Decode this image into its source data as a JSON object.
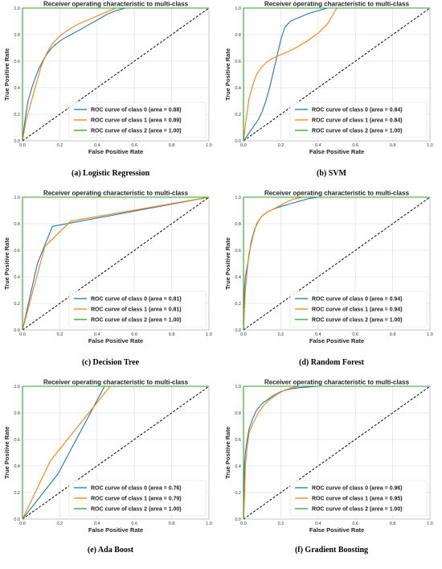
{
  "colors": {
    "class0": "#1f77b4",
    "class1": "#ff7f0e",
    "class2": "#2ca02c",
    "diagonal": "#000000",
    "grid": "#e0e0e0",
    "frame": "#bbbbbb"
  },
  "chart_data": [
    {
      "type": "line",
      "title": "Receiver operating characteristic to multi-class",
      "xlabel": "False Positive Rate",
      "ylabel": "True Positive Rate",
      "caption": "(a) Logistic Regression",
      "xlim": [
        0,
        1
      ],
      "ylim": [
        0,
        1
      ],
      "ticks": [
        "0.0",
        "0.2",
        "0.4",
        "0.6",
        "0.8",
        "1.0"
      ],
      "grid": true,
      "legend": "lower-right",
      "series": [
        {
          "name": "ROC curve of class 0 (area = 0.88)",
          "x": [
            0,
            0.01,
            0.02,
            0.03,
            0.05,
            0.07,
            0.09,
            0.12,
            0.15,
            0.18,
            0.22,
            0.26,
            0.3,
            0.35,
            0.4,
            0.45,
            0.5,
            0.55,
            1.0
          ],
          "y": [
            0,
            0.12,
            0.22,
            0.3,
            0.4,
            0.48,
            0.55,
            0.63,
            0.69,
            0.73,
            0.77,
            0.8,
            0.83,
            0.87,
            0.91,
            0.95,
            0.98,
            1.0,
            1.0
          ]
        },
        {
          "name": "ROC curve of class 1 (area = 0.89)",
          "x": [
            0,
            0.01,
            0.02,
            0.04,
            0.06,
            0.08,
            0.1,
            0.13,
            0.16,
            0.2,
            0.25,
            0.3,
            0.35,
            0.4,
            0.45,
            0.5,
            1.0
          ],
          "y": [
            0,
            0.08,
            0.16,
            0.26,
            0.36,
            0.46,
            0.56,
            0.66,
            0.73,
            0.79,
            0.84,
            0.88,
            0.91,
            0.94,
            0.97,
            1.0,
            1.0
          ]
        },
        {
          "name": "ROC curve of class 2 (area = 1.00)",
          "x": [
            0,
            0,
            1
          ],
          "y": [
            0,
            1,
            1
          ]
        }
      ]
    },
    {
      "type": "line",
      "title": "Receiver operating characteristic to multi-class",
      "xlabel": "False Positive Rate",
      "ylabel": "True Positive Rate",
      "caption": "(b) SVM",
      "xlim": [
        0,
        1
      ],
      "ylim": [
        0,
        1
      ],
      "ticks": [
        "0.0",
        "0.2",
        "0.4",
        "0.6",
        "0.8",
        "1.0"
      ],
      "grid": true,
      "legend": "lower-right",
      "series": [
        {
          "name": "ROC curve of class 0 (area = 0.84)",
          "x": [
            0,
            0.02,
            0.05,
            0.08,
            0.1,
            0.12,
            0.14,
            0.16,
            0.18,
            0.2,
            0.22,
            0.25,
            0.3,
            0.35,
            0.4,
            0.45,
            1.0
          ],
          "y": [
            0,
            0.04,
            0.1,
            0.16,
            0.22,
            0.3,
            0.4,
            0.52,
            0.64,
            0.76,
            0.85,
            0.9,
            0.93,
            0.96,
            0.98,
            1.0,
            1.0
          ]
        },
        {
          "name": "ROC curve of class 1 (area = 0.84)",
          "x": [
            0,
            0.01,
            0.02,
            0.03,
            0.05,
            0.07,
            0.1,
            0.13,
            0.17,
            0.22,
            0.28,
            0.34,
            0.4,
            0.45,
            0.5,
            1.0
          ],
          "y": [
            0,
            0.12,
            0.22,
            0.32,
            0.42,
            0.5,
            0.56,
            0.6,
            0.63,
            0.66,
            0.7,
            0.75,
            0.81,
            0.88,
            1.0,
            1.0
          ]
        },
        {
          "name": "ROC curve of class 2 (area = 1.00)",
          "x": [
            0,
            0,
            1
          ],
          "y": [
            0,
            1,
            1
          ]
        }
      ]
    },
    {
      "type": "line",
      "title": "Receiver operating characteristic to multi-class",
      "xlabel": "False Positive Rate",
      "ylabel": "True Positive Rate",
      "caption": "(c) Decision Tree",
      "xlim": [
        0,
        1
      ],
      "ylim": [
        0,
        1
      ],
      "ticks": [
        "0.0",
        "0.2",
        "0.4",
        "0.6",
        "0.8",
        "1.0"
      ],
      "grid": true,
      "legend": "lower-right",
      "series": [
        {
          "name": "ROC curve of class 0 (area = 0.81)",
          "x": [
            0,
            0.08,
            0.16,
            1.0
          ],
          "y": [
            0,
            0.5,
            0.78,
            1.0
          ]
        },
        {
          "name": "ROC curve of class 1 (area = 0.81)",
          "x": [
            0,
            0.12,
            0.26,
            1.0
          ],
          "y": [
            0,
            0.63,
            0.82,
            1.0
          ]
        },
        {
          "name": "ROC curve of class 2 (area = 1.00)",
          "x": [
            0,
            0,
            1
          ],
          "y": [
            0,
            1,
            1
          ]
        }
      ]
    },
    {
      "type": "line",
      "title": "Receiver operating characteristic to multi-class",
      "xlabel": "False Positive Rate",
      "ylabel": "True Positive Rate",
      "caption": "(d) Random Forest",
      "xlim": [
        0,
        1
      ],
      "ylim": [
        0,
        1
      ],
      "ticks": [
        "0.0",
        "0.2",
        "0.4",
        "0.6",
        "0.8",
        "1.0"
      ],
      "grid": true,
      "legend": "lower-right",
      "series": [
        {
          "name": "ROC curve of class 0 (area = 0.94)",
          "x": [
            0,
            0.005,
            0.01,
            0.02,
            0.03,
            0.04,
            0.06,
            0.08,
            0.1,
            0.13,
            0.16,
            0.2,
            0.25,
            0.3,
            0.35,
            0.4,
            1.0
          ],
          "y": [
            0,
            0.3,
            0.4,
            0.48,
            0.56,
            0.66,
            0.76,
            0.82,
            0.86,
            0.89,
            0.91,
            0.93,
            0.95,
            0.97,
            0.99,
            1.0,
            1.0
          ]
        },
        {
          "name": "ROC curve of class 1 (area = 0.94)",
          "x": [
            0,
            0.005,
            0.01,
            0.02,
            0.03,
            0.05,
            0.07,
            0.1,
            0.13,
            0.16,
            0.2,
            0.24,
            0.28,
            0.32,
            1.0
          ],
          "y": [
            0,
            0.15,
            0.3,
            0.45,
            0.58,
            0.7,
            0.8,
            0.86,
            0.89,
            0.91,
            0.94,
            0.97,
            0.99,
            1.0,
            1.0
          ]
        },
        {
          "name": "ROC curve of class 2 (area = 1.00)",
          "x": [
            0,
            0,
            1
          ],
          "y": [
            0,
            1,
            1
          ]
        }
      ]
    },
    {
      "type": "line",
      "title": "Receiver operating characteristic to multi-class",
      "xlabel": "False Positive Rate",
      "ylabel": "True Positive Rate",
      "caption": "(e) Ada Boost",
      "xlim": [
        0,
        1
      ],
      "ylim": [
        0,
        1
      ],
      "ticks": [
        "0.0",
        "0.2",
        "0.4",
        "0.6",
        "0.8",
        "1.0"
      ],
      "grid": true,
      "legend": "lower-right",
      "series": [
        {
          "name": "ROC curve of class 0 (area = 0.76)",
          "x": [
            0,
            0.19,
            0.44,
            1.0
          ],
          "y": [
            0,
            0.34,
            1.0,
            1.0
          ]
        },
        {
          "name": "ROC curve of class 1 (area = 0.79)",
          "x": [
            0,
            0.15,
            0.47,
            1.0
          ],
          "y": [
            0,
            0.44,
            1.0,
            1.0
          ]
        },
        {
          "name": "ROC curve of class 2 (area = 1.00)",
          "x": [
            0,
            0,
            1
          ],
          "y": [
            0,
            1,
            1
          ]
        }
      ]
    },
    {
      "type": "line",
      "title": "Receiver operating characteristic to multi-class",
      "xlabel": "False Positive Rate",
      "ylabel": "True Positive Rate",
      "caption": "(f) Gradient Boosting",
      "xlim": [
        0,
        1
      ],
      "ylim": [
        0,
        1
      ],
      "ticks": [
        "0.0",
        "0.2",
        "0.4",
        "0.6",
        "0.8",
        "1.0"
      ],
      "grid": true,
      "legend": "lower-right",
      "series": [
        {
          "name": "ROC curve of class 0 (area = 0.96)",
          "x": [
            0,
            0.005,
            0.01,
            0.02,
            0.03,
            0.05,
            0.07,
            0.1,
            0.13,
            0.16,
            0.2,
            0.25,
            0.3,
            0.4,
            1.0
          ],
          "y": [
            0,
            0.4,
            0.5,
            0.6,
            0.68,
            0.76,
            0.82,
            0.87,
            0.9,
            0.93,
            0.96,
            0.98,
            0.99,
            1.0,
            1.0
          ]
        },
        {
          "name": "ROC curve of class 1 (area = 0.95)",
          "x": [
            0,
            0.005,
            0.01,
            0.02,
            0.03,
            0.05,
            0.08,
            0.11,
            0.14,
            0.18,
            0.22,
            0.26,
            0.3,
            1.0
          ],
          "y": [
            0,
            0.15,
            0.4,
            0.55,
            0.65,
            0.72,
            0.8,
            0.86,
            0.9,
            0.94,
            0.97,
            0.99,
            1.0,
            1.0
          ]
        },
        {
          "name": "ROC curve of class 2 (area = 1.00)",
          "x": [
            0,
            0,
            1
          ],
          "y": [
            0,
            1,
            1
          ]
        }
      ]
    }
  ]
}
